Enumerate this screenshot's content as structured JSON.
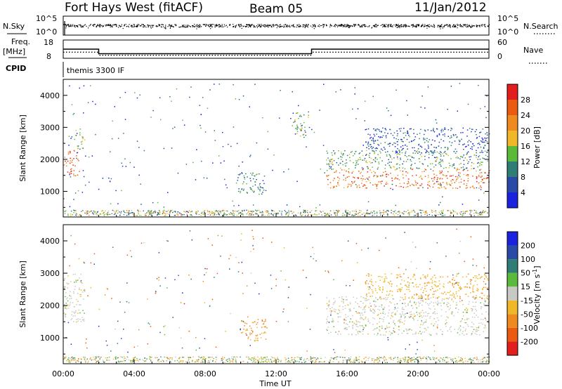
{
  "header": {
    "title": "Fort Hays West (fitACF)",
    "beam": "Beam 05",
    "date": "11/Jan/2012"
  },
  "top_strip": {
    "nsky_label": "N.Sky",
    "nsky_ticks": [
      "10^5",
      "10^0"
    ],
    "nsearch_label": "N.Search",
    "nsearch_ticks": [
      "10^5",
      "10^0"
    ],
    "freq_label": "Freq.",
    "freq_unit": "[MHz]",
    "freq_ticks": [
      "18",
      "8"
    ],
    "nave_label": "Nave",
    "nave_ticks": [
      "60",
      "0"
    ],
    "cpid_label": "CPID",
    "cpid_text": "themis 3300 IF"
  },
  "chart_data": [
    {
      "type": "line",
      "panel": "frequency / nave strip",
      "x_unit": "hours UT",
      "series": [
        {
          "name": "Freq.",
          "x": [
            0,
            2,
            2,
            14,
            14,
            24
          ],
          "y": [
            13.0,
            13.0,
            10.5,
            10.5,
            13.0,
            13.0
          ]
        },
        {
          "name": "Nave",
          "x": [
            0,
            2,
            2,
            14,
            14,
            24
          ],
          "y": [
            20,
            20,
            10,
            10,
            20,
            20
          ]
        }
      ]
    },
    {
      "type": "scatter",
      "panel": "power",
      "ylabel": "Slant Range [km]",
      "xlabel": "",
      "xlim": [
        0,
        24
      ],
      "ylim": [
        200,
        4500
      ],
      "yticks": [
        "1000",
        "2000",
        "3000",
        "4000"
      ],
      "colorbar": {
        "label": "Power [dB]",
        "ticks": [
          "4",
          "8",
          "12",
          "16",
          "20",
          "24",
          "28"
        ],
        "colors": [
          "#1a22e0",
          "#2a4aa8",
          "#2f7d74",
          "#5cba3a",
          "#f0b828",
          "#ee8a1e",
          "#ea5a10",
          "#e21e1e"
        ]
      },
      "regions": [
        {
          "t0": 0.0,
          "t1": 0.9,
          "r0": 1500,
          "r1": 2300,
          "power": 26
        },
        {
          "t0": 0.6,
          "t1": 1.2,
          "r0": 2300,
          "r1": 3000,
          "power": 14
        },
        {
          "t0": 9.8,
          "t1": 11.4,
          "r0": 900,
          "r1": 1600,
          "power": 10
        },
        {
          "t0": 13.0,
          "t1": 13.9,
          "r0": 2700,
          "r1": 3500,
          "power": 12
        },
        {
          "t0": 14.8,
          "t1": 24.0,
          "r0": 1100,
          "r1": 1700,
          "power": 24
        },
        {
          "t0": 14.8,
          "t1": 24.0,
          "r0": 1700,
          "r1": 2300,
          "power": 12
        },
        {
          "t0": 17.0,
          "t1": 24.0,
          "r0": 2200,
          "r1": 3000,
          "power": 6
        }
      ]
    },
    {
      "type": "scatter",
      "panel": "velocity",
      "ylabel": "Slant Range [km]",
      "xlabel": "Time UT",
      "xlim": [
        0,
        24
      ],
      "ylim": [
        200,
        4500
      ],
      "yticks": [
        "1000",
        "2000",
        "3000",
        "4000"
      ],
      "xticks": [
        "00:00",
        "04:00",
        "08:00",
        "12:00",
        "16:00",
        "20:00",
        "00:00"
      ],
      "colorbar": {
        "label": "Velocity [m s^-1]",
        "ticks": [
          "200",
          "100",
          "50",
          "15",
          "-15",
          "-50",
          "-100",
          "-200"
        ],
        "colors": [
          "#1a22e0",
          "#2a4aa8",
          "#2f7d74",
          "#5cba3a",
          "#c8c8c4",
          "#f0b828",
          "#ee8a1e",
          "#ea5a10",
          "#e21e1e"
        ]
      },
      "regions": [
        {
          "t0": 0.0,
          "t1": 1.2,
          "r0": 1500,
          "r1": 3000,
          "velocity": 0
        },
        {
          "t0": 10.0,
          "t1": 11.5,
          "r0": 900,
          "r1": 1600,
          "velocity": -60
        },
        {
          "t0": 14.8,
          "t1": 24.0,
          "r0": 1100,
          "r1": 2300,
          "velocity": 0
        },
        {
          "t0": 17.0,
          "t1": 24.0,
          "r0": 2200,
          "r1": 3000,
          "velocity": -40
        }
      ]
    }
  ]
}
